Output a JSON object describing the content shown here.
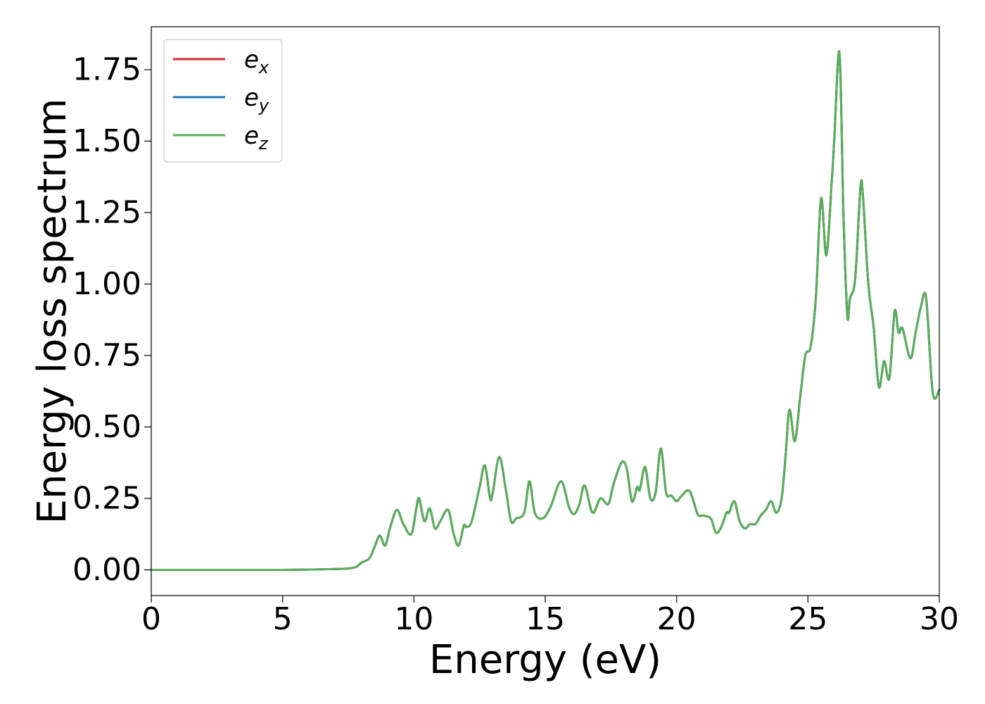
{
  "chart_data": {
    "type": "line",
    "xlabel": "Energy (eV)",
    "ylabel": "Energy loss spectrum",
    "xlim": [
      0,
      30
    ],
    "ylim": [
      -0.09,
      1.9
    ],
    "xticks": [
      0,
      5,
      10,
      15,
      20,
      25,
      30
    ],
    "xtick_labels": [
      "0",
      "5",
      "10",
      "15",
      "20",
      "25",
      "30"
    ],
    "yticks": [
      0,
      0.25,
      0.5,
      0.75,
      1.0,
      1.25,
      1.5,
      1.75
    ],
    "ytick_labels": [
      "0.00",
      "0.25",
      "0.50",
      "0.75",
      "1.00",
      "1.25",
      "1.50",
      "1.75"
    ],
    "grid": false,
    "legend_position": "top-left",
    "colors": {
      "ex": "#d62728",
      "ey": "#1f77b4",
      "ez": "#5aad5a"
    },
    "x": [
      0,
      5,
      7,
      7.5,
      7.8,
      8.0,
      8.3,
      8.5,
      8.7,
      8.9,
      9.1,
      9.35,
      9.6,
      9.9,
      10.1,
      10.2,
      10.4,
      10.6,
      10.8,
      11.0,
      11.3,
      11.5,
      11.7,
      11.9,
      12.0,
      12.2,
      12.5,
      12.7,
      12.9,
      13.0,
      13.25,
      13.5,
      13.7,
      13.9,
      14.2,
      14.4,
      14.6,
      14.9,
      15.2,
      15.6,
      15.9,
      16.1,
      16.3,
      16.5,
      16.8,
      17.1,
      17.4,
      17.6,
      17.9,
      18.1,
      18.3,
      18.5,
      18.6,
      18.8,
      19.0,
      19.2,
      19.4,
      19.6,
      19.8,
      20.0,
      20.2,
      20.5,
      20.8,
      21.0,
      21.3,
      21.5,
      21.7,
      21.9,
      22.0,
      22.2,
      22.4,
      22.6,
      22.8,
      23.0,
      23.2,
      23.4,
      23.6,
      23.8,
      24.0,
      24.15,
      24.3,
      24.5,
      24.7,
      24.9,
      25.1,
      25.3,
      25.5,
      25.7,
      25.9,
      26.0,
      26.2,
      26.35,
      26.5,
      26.6,
      26.8,
      27.0,
      27.1,
      27.3,
      27.5,
      27.7,
      27.9,
      28.1,
      28.3,
      28.45,
      28.6,
      28.9,
      29.1,
      29.3,
      29.5,
      29.75,
      30
    ],
    "series": [
      {
        "name": "ex",
        "values": [
          0.0,
          0.0,
          0.003,
          0.005,
          0.01,
          0.025,
          0.04,
          0.08,
          0.12,
          0.085,
          0.15,
          0.21,
          0.16,
          0.125,
          0.22,
          0.25,
          0.17,
          0.215,
          0.145,
          0.17,
          0.21,
          0.13,
          0.085,
          0.155,
          0.15,
          0.17,
          0.29,
          0.365,
          0.25,
          0.27,
          0.395,
          0.28,
          0.17,
          0.18,
          0.2,
          0.31,
          0.2,
          0.18,
          0.22,
          0.31,
          0.22,
          0.195,
          0.23,
          0.295,
          0.2,
          0.25,
          0.23,
          0.3,
          0.375,
          0.355,
          0.24,
          0.29,
          0.28,
          0.36,
          0.25,
          0.27,
          0.425,
          0.27,
          0.26,
          0.24,
          0.26,
          0.275,
          0.195,
          0.19,
          0.18,
          0.13,
          0.15,
          0.2,
          0.2,
          0.24,
          0.17,
          0.145,
          0.16,
          0.16,
          0.19,
          0.21,
          0.24,
          0.2,
          0.25,
          0.4,
          0.56,
          0.45,
          0.6,
          0.75,
          0.78,
          0.95,
          1.3,
          1.1,
          1.35,
          1.5,
          1.81,
          1.25,
          0.89,
          0.95,
          1.02,
          1.34,
          1.3,
          1.0,
          0.85,
          0.64,
          0.73,
          0.67,
          0.905,
          0.83,
          0.845,
          0.74,
          0.83,
          0.92,
          0.95,
          0.62,
          0.63
        ]
      },
      {
        "name": "ey",
        "values": [
          0.0,
          0.0,
          0.003,
          0.005,
          0.01,
          0.025,
          0.04,
          0.08,
          0.12,
          0.085,
          0.15,
          0.21,
          0.16,
          0.125,
          0.22,
          0.25,
          0.17,
          0.215,
          0.145,
          0.17,
          0.21,
          0.13,
          0.085,
          0.155,
          0.15,
          0.17,
          0.29,
          0.365,
          0.25,
          0.27,
          0.395,
          0.28,
          0.17,
          0.18,
          0.2,
          0.31,
          0.2,
          0.18,
          0.22,
          0.31,
          0.22,
          0.195,
          0.23,
          0.295,
          0.2,
          0.25,
          0.23,
          0.3,
          0.375,
          0.355,
          0.24,
          0.29,
          0.28,
          0.36,
          0.25,
          0.27,
          0.425,
          0.27,
          0.26,
          0.24,
          0.26,
          0.275,
          0.195,
          0.19,
          0.18,
          0.13,
          0.15,
          0.2,
          0.2,
          0.24,
          0.17,
          0.145,
          0.16,
          0.16,
          0.19,
          0.21,
          0.24,
          0.2,
          0.25,
          0.4,
          0.56,
          0.45,
          0.6,
          0.75,
          0.78,
          0.95,
          1.3,
          1.1,
          1.35,
          1.5,
          1.81,
          1.25,
          0.89,
          0.95,
          1.02,
          1.34,
          1.3,
          1.0,
          0.85,
          0.64,
          0.73,
          0.67,
          0.905,
          0.83,
          0.845,
          0.74,
          0.83,
          0.92,
          0.95,
          0.62,
          0.63
        ]
      },
      {
        "name": "ez",
        "values": [
          0.0,
          0.0,
          0.003,
          0.005,
          0.01,
          0.025,
          0.04,
          0.08,
          0.12,
          0.085,
          0.15,
          0.21,
          0.16,
          0.125,
          0.22,
          0.25,
          0.17,
          0.215,
          0.145,
          0.17,
          0.21,
          0.13,
          0.085,
          0.155,
          0.15,
          0.17,
          0.29,
          0.365,
          0.25,
          0.27,
          0.395,
          0.28,
          0.17,
          0.18,
          0.2,
          0.31,
          0.2,
          0.18,
          0.22,
          0.31,
          0.22,
          0.195,
          0.23,
          0.295,
          0.2,
          0.25,
          0.23,
          0.3,
          0.375,
          0.355,
          0.24,
          0.29,
          0.28,
          0.36,
          0.25,
          0.27,
          0.425,
          0.27,
          0.26,
          0.24,
          0.26,
          0.275,
          0.195,
          0.19,
          0.18,
          0.13,
          0.15,
          0.2,
          0.2,
          0.24,
          0.17,
          0.145,
          0.16,
          0.16,
          0.19,
          0.21,
          0.24,
          0.2,
          0.25,
          0.4,
          0.56,
          0.45,
          0.6,
          0.75,
          0.78,
          0.95,
          1.3,
          1.1,
          1.35,
          1.5,
          1.81,
          1.25,
          0.89,
          0.95,
          1.02,
          1.34,
          1.3,
          1.0,
          0.85,
          0.64,
          0.73,
          0.67,
          0.905,
          0.83,
          0.845,
          0.74,
          0.83,
          0.92,
          0.95,
          0.62,
          0.63
        ]
      }
    ],
    "legend": [
      {
        "base": "e",
        "sub": "x"
      },
      {
        "base": "e",
        "sub": "y"
      },
      {
        "base": "e",
        "sub": "z"
      }
    ]
  }
}
